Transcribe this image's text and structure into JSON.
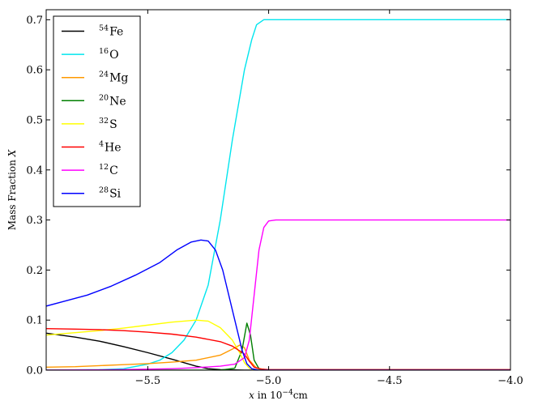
{
  "chart_data": {
    "type": "line",
    "xlabel_html": "x in 10⁻⁴ cm",
    "xlabel": {
      "var": "x",
      "text": " in 10",
      "exp": "−4",
      "unit": "cm"
    },
    "ylabel": {
      "text": "Mass Fraction ",
      "var": "X"
    },
    "xlim": [
      -5.92,
      -4.0
    ],
    "ylim": [
      0.0,
      0.72
    ],
    "xticks": [
      -5.5,
      -5.0,
      -4.5,
      -4.0
    ],
    "xtick_labels": [
      "−5.5",
      "−5.0",
      "−4.5",
      "−4.0"
    ],
    "yticks": [
      0.0,
      0.1,
      0.2,
      0.3,
      0.4,
      0.5,
      0.6,
      0.7
    ],
    "ytick_labels": [
      "0.0",
      "0.1",
      "0.2",
      "0.3",
      "0.4",
      "0.5",
      "0.6",
      "0.7"
    ],
    "grid": false,
    "legend_position": "top-left",
    "series": [
      {
        "name": "Fe",
        "mass": "54",
        "color": "#000000",
        "points": [
          [
            -5.92,
            0.074
          ],
          [
            -5.8,
            0.066
          ],
          [
            -5.7,
            0.058
          ],
          [
            -5.6,
            0.047
          ],
          [
            -5.5,
            0.035
          ],
          [
            -5.4,
            0.022
          ],
          [
            -5.3,
            0.008
          ],
          [
            -5.25,
            0.003
          ],
          [
            -5.2,
            0.001
          ],
          [
            -5.1,
            0.0
          ],
          [
            -4.0,
            0.0
          ]
        ]
      },
      {
        "name": "O",
        "mass": "16",
        "color": "#00e5ee",
        "points": [
          [
            -5.92,
            0.0
          ],
          [
            -5.7,
            0.001
          ],
          [
            -5.6,
            0.003
          ],
          [
            -5.5,
            0.012
          ],
          [
            -5.45,
            0.02
          ],
          [
            -5.4,
            0.035
          ],
          [
            -5.35,
            0.06
          ],
          [
            -5.3,
            0.1
          ],
          [
            -5.25,
            0.17
          ],
          [
            -5.2,
            0.3
          ],
          [
            -5.15,
            0.46
          ],
          [
            -5.1,
            0.6
          ],
          [
            -5.07,
            0.66
          ],
          [
            -5.05,
            0.69
          ],
          [
            -5.02,
            0.7
          ],
          [
            -4.0,
            0.7
          ]
        ]
      },
      {
        "name": "Mg",
        "mass": "24",
        "color": "#ff9900",
        "points": [
          [
            -5.92,
            0.006
          ],
          [
            -5.8,
            0.007
          ],
          [
            -5.7,
            0.009
          ],
          [
            -5.6,
            0.011
          ],
          [
            -5.5,
            0.013
          ],
          [
            -5.4,
            0.016
          ],
          [
            -5.3,
            0.02
          ],
          [
            -5.2,
            0.03
          ],
          [
            -5.15,
            0.042
          ],
          [
            -5.12,
            0.05
          ],
          [
            -5.1,
            0.045
          ],
          [
            -5.08,
            0.02
          ],
          [
            -5.05,
            0.004
          ],
          [
            -5.0,
            0.0
          ],
          [
            -4.0,
            0.0
          ]
        ]
      },
      {
        "name": "Ne",
        "mass": "20",
        "color": "#007f00",
        "points": [
          [
            -5.92,
            0.0
          ],
          [
            -5.2,
            0.0
          ],
          [
            -5.14,
            0.004
          ],
          [
            -5.11,
            0.04
          ],
          [
            -5.09,
            0.094
          ],
          [
            -5.075,
            0.07
          ],
          [
            -5.06,
            0.02
          ],
          [
            -5.04,
            0.003
          ],
          [
            -5.0,
            0.0
          ],
          [
            -4.0,
            0.0
          ]
        ]
      },
      {
        "name": "S",
        "mass": "32",
        "color": "#ffff00",
        "points": [
          [
            -5.92,
            0.07
          ],
          [
            -5.8,
            0.075
          ],
          [
            -5.7,
            0.079
          ],
          [
            -5.6,
            0.084
          ],
          [
            -5.5,
            0.09
          ],
          [
            -5.4,
            0.096
          ],
          [
            -5.3,
            0.1
          ],
          [
            -5.25,
            0.098
          ],
          [
            -5.2,
            0.085
          ],
          [
            -5.15,
            0.06
          ],
          [
            -5.12,
            0.035
          ],
          [
            -5.1,
            0.015
          ],
          [
            -5.08,
            0.004
          ],
          [
            -5.05,
            0.0
          ],
          [
            -4.0,
            0.0
          ]
        ]
      },
      {
        "name": "He",
        "mass": "4",
        "color": "#ff0000",
        "points": [
          [
            -5.92,
            0.083
          ],
          [
            -5.8,
            0.082
          ],
          [
            -5.7,
            0.081
          ],
          [
            -5.6,
            0.079
          ],
          [
            -5.5,
            0.076
          ],
          [
            -5.4,
            0.072
          ],
          [
            -5.3,
            0.066
          ],
          [
            -5.2,
            0.057
          ],
          [
            -5.15,
            0.048
          ],
          [
            -5.1,
            0.032
          ],
          [
            -5.08,
            0.018
          ],
          [
            -5.06,
            0.006
          ],
          [
            -5.03,
            0.002
          ],
          [
            -5.0,
            0.001
          ],
          [
            -4.0,
            0.001
          ]
        ]
      },
      {
        "name": "C",
        "mass": "12",
        "color": "#ff00ff",
        "points": [
          [
            -5.92,
            0.0
          ],
          [
            -5.6,
            0.001
          ],
          [
            -5.4,
            0.003
          ],
          [
            -5.3,
            0.005
          ],
          [
            -5.2,
            0.008
          ],
          [
            -5.14,
            0.012
          ],
          [
            -5.1,
            0.025
          ],
          [
            -5.08,
            0.06
          ],
          [
            -5.06,
            0.15
          ],
          [
            -5.04,
            0.24
          ],
          [
            -5.02,
            0.285
          ],
          [
            -5.0,
            0.298
          ],
          [
            -4.97,
            0.3
          ],
          [
            -4.0,
            0.3
          ]
        ]
      },
      {
        "name": "Si",
        "mass": "28",
        "color": "#0000ff",
        "points": [
          [
            -5.92,
            0.128
          ],
          [
            -5.85,
            0.137
          ],
          [
            -5.75,
            0.15
          ],
          [
            -5.65,
            0.168
          ],
          [
            -5.55,
            0.19
          ],
          [
            -5.45,
            0.215
          ],
          [
            -5.38,
            0.24
          ],
          [
            -5.32,
            0.256
          ],
          [
            -5.28,
            0.26
          ],
          [
            -5.25,
            0.258
          ],
          [
            -5.22,
            0.24
          ],
          [
            -5.19,
            0.2
          ],
          [
            -5.16,
            0.14
          ],
          [
            -5.13,
            0.08
          ],
          [
            -5.11,
            0.04
          ],
          [
            -5.09,
            0.013
          ],
          [
            -5.07,
            0.003
          ],
          [
            -5.04,
            0.0
          ],
          [
            -4.0,
            0.0
          ]
        ]
      }
    ]
  }
}
